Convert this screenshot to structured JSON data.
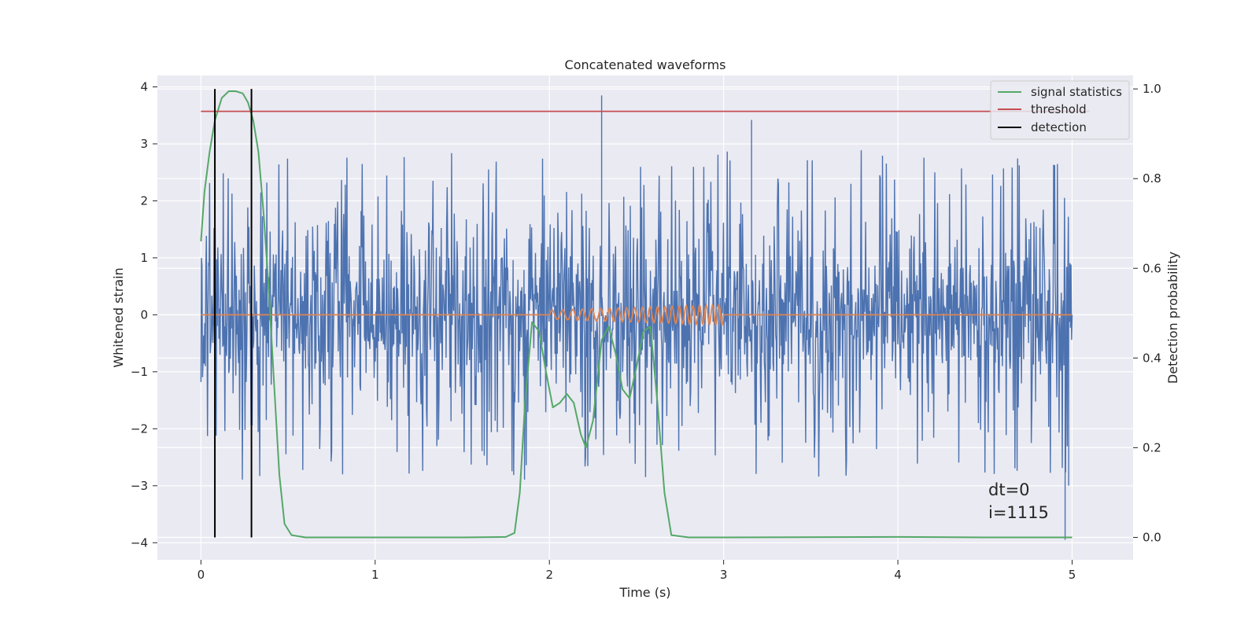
{
  "chart_data": {
    "type": "line",
    "title": "Concatenated waveforms",
    "xlabel": "Time (s)",
    "ylabel": "Whitened strain",
    "y2label": "Detection probability",
    "xlim": [
      -0.25,
      5.35
    ],
    "ylim": [
      -4.3,
      4.2
    ],
    "y2lim": [
      -0.05,
      1.03
    ],
    "xticks": [
      0,
      1,
      2,
      3,
      4,
      5
    ],
    "xtick_labels": [
      "0",
      "1",
      "2",
      "3",
      "4",
      "5"
    ],
    "yticks": [
      -4,
      -3,
      -2,
      -1,
      0,
      1,
      2,
      3,
      4
    ],
    "ytick_labels": [
      "−4",
      "−3",
      "−2",
      "−1",
      "0",
      "1",
      "2",
      "3",
      "4"
    ],
    "y2ticks": [
      0.0,
      0.2,
      0.4,
      0.6,
      0.8,
      1.0
    ],
    "y2tick_labels": [
      "0.0",
      "0.2",
      "0.4",
      "0.6",
      "0.8",
      "1.0"
    ],
    "grid": true,
    "legend_position": "top-right",
    "legend": [
      "signal statistics",
      "threshold",
      "detection"
    ],
    "annotation": [
      "dt=0",
      "i=1115"
    ],
    "colors": {
      "strain": "#4c72b0",
      "injection": "#dd8452",
      "statistics": "#55a868",
      "threshold": "#c44e52",
      "detection": "#000000",
      "background": "#eaeaf2",
      "grid": "#ffffff"
    },
    "series": [
      {
        "name": "",
        "axis": "left",
        "description_type": "noise",
        "x_range": [
          0,
          5
        ],
        "samples": 1600,
        "core_sigma": 0.75,
        "spike_max": 3.85,
        "spike_min": -3.95
      },
      {
        "name": "",
        "axis": "left",
        "x": [
          0,
          2.0,
          2.1,
          2.2,
          2.3,
          2.4,
          2.5,
          2.6,
          2.7,
          2.8,
          2.9,
          3.0,
          5.0
        ],
        "amplitude": [
          0,
          0.08,
          0.09,
          0.1,
          0.11,
          0.12,
          0.13,
          0.14,
          0.15,
          0.16,
          0.17,
          0.18,
          0
        ]
      },
      {
        "name": "signal statistics",
        "axis": "right",
        "x": [
          0.0,
          0.02,
          0.05,
          0.08,
          0.12,
          0.16,
          0.2,
          0.24,
          0.27,
          0.3,
          0.33,
          0.36,
          0.39,
          0.42,
          0.45,
          0.48,
          0.52,
          0.6,
          1.0,
          1.5,
          1.75,
          1.8,
          1.83,
          1.86,
          1.9,
          1.94,
          1.98,
          2.02,
          2.06,
          2.1,
          2.14,
          2.18,
          2.21,
          2.25,
          2.3,
          2.34,
          2.38,
          2.42,
          2.46,
          2.5,
          2.54,
          2.58,
          2.62,
          2.66,
          2.7,
          2.8,
          3.0,
          4.0,
          4.5,
          5.0
        ],
        "y": [
          0.66,
          0.77,
          0.86,
          0.93,
          0.98,
          0.995,
          0.995,
          0.99,
          0.97,
          0.93,
          0.86,
          0.72,
          0.55,
          0.34,
          0.14,
          0.03,
          0.005,
          0.0,
          0.0,
          0.0,
          0.001,
          0.01,
          0.1,
          0.3,
          0.48,
          0.46,
          0.37,
          0.29,
          0.3,
          0.32,
          0.3,
          0.23,
          0.2,
          0.26,
          0.44,
          0.47,
          0.41,
          0.33,
          0.31,
          0.38,
          0.46,
          0.47,
          0.3,
          0.1,
          0.005,
          0.0,
          0.0,
          0.001,
          0.0,
          0.0
        ]
      },
      {
        "name": "threshold",
        "axis": "right",
        "x": [
          0,
          5.1
        ],
        "y": [
          0.95,
          0.95
        ]
      },
      {
        "name": "detection",
        "axis": "right",
        "type": "vlines",
        "x": [
          0.08,
          0.29
        ],
        "y_range": [
          0.0,
          1.0
        ]
      }
    ]
  }
}
